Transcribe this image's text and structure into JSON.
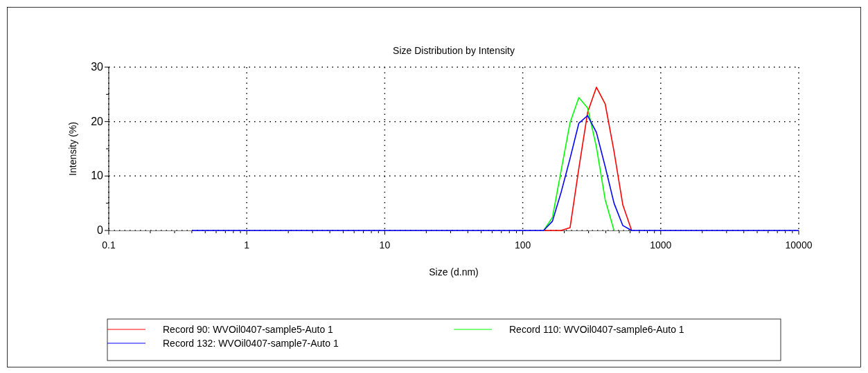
{
  "chart_data": {
    "type": "line",
    "title": "Size Distribution by Intensity",
    "xlabel": "Size (d.nm)",
    "ylabel": "Intensity (%)",
    "log": "x",
    "grid": true,
    "legend": "bottom",
    "marker": "none",
    "line_style": "solid",
    "x": [
      0.4,
      0.4632,
      0.5365,
      0.6213,
      0.7195,
      0.8332,
      0.9649,
      1.117,
      1.294,
      1.499,
      1.736,
      2.01,
      2.328,
      2.696,
      3.122,
      3.615,
      4.187,
      4.849,
      5.615,
      6.503,
      7.531,
      8.721,
      10.1,
      11.7,
      13.54,
      15.69,
      18.17,
      21.04,
      24.36,
      28.21,
      32.67,
      37.84,
      43.82,
      50.75,
      58.77,
      68.06,
      78.82,
      91.28,
      105.7,
      122.4,
      141.8,
      164.2,
      190.1,
      220.2,
      255,
      295.3,
      342,
      396.1,
      458.7,
      531.2,
      615.1,
      712.4,
      825,
      955.4,
      1106,
      1281,
      1484,
      1718,
      1990,
      2305,
      2669,
      3091,
      3580,
      4145,
      4801,
      5560,
      6439,
      7456,
      8635,
      10000
    ],
    "xlim": [
      0.1,
      10000
    ],
    "xticks": [
      0.1,
      {
        "value": 0.2,
        "label": null
      },
      {
        "value": 0.3,
        "label": null
      },
      {
        "value": 0.4,
        "label": null
      },
      {
        "value": 0.5,
        "label": null
      },
      {
        "value": 0.6,
        "label": null
      },
      {
        "value": 0.7,
        "label": null
      },
      {
        "value": 0.8,
        "label": null
      },
      {
        "value": 0.9,
        "label": null
      },
      1,
      {
        "value": 2,
        "label": null
      },
      {
        "value": 3,
        "label": null
      },
      {
        "value": 4,
        "label": null
      },
      {
        "value": 5,
        "label": null
      },
      {
        "value": 6,
        "label": null
      },
      {
        "value": 7,
        "label": null
      },
      {
        "value": 8,
        "label": null
      },
      {
        "value": 9,
        "label": null
      },
      10,
      {
        "value": 20,
        "label": null
      },
      {
        "value": 30,
        "label": null
      },
      {
        "value": 40,
        "label": null
      },
      {
        "value": 50,
        "label": null
      },
      {
        "value": 60,
        "label": null
      },
      {
        "value": 70,
        "label": null
      },
      {
        "value": 80,
        "label": null
      },
      {
        "value": 90,
        "label": null
      },
      100,
      {
        "value": 200,
        "label": null
      },
      {
        "value": 300,
        "label": null
      },
      {
        "value": 400,
        "label": null
      },
      {
        "value": 500,
        "label": null
      },
      {
        "value": 600,
        "label": null
      },
      {
        "value": 700,
        "label": null
      },
      {
        "value": 800,
        "label": null
      },
      {
        "value": 900,
        "label": null
      },
      1000,
      {
        "value": 2000,
        "label": null
      },
      {
        "value": 3000,
        "label": null
      },
      {
        "value": 4000,
        "label": null
      },
      {
        "value": 5000,
        "label": null
      },
      {
        "value": 6000,
        "label": null
      },
      {
        "value": 7000,
        "label": null
      },
      {
        "value": 8000,
        "label": null
      },
      {
        "value": 9000,
        "label": null
      },
      10000
    ],
    "ylim": [
      0,
      30
    ],
    "yticks": [
      0,
      {
        "value": 5,
        "label": null
      },
      10,
      {
        "value": 15,
        "label": null
      },
      20,
      {
        "value": 25,
        "label": null
      },
      30
    ],
    "series": [
      {
        "name": "Record 90: WVOil0407-sample5-Auto 1",
        "color": "#ff0000",
        "values": [
          null,
          null,
          null,
          null,
          null,
          null,
          null,
          null,
          null,
          null,
          null,
          null,
          null,
          null,
          null,
          null,
          null,
          null,
          null,
          null,
          null,
          null,
          null,
          null,
          null,
          null,
          null,
          null,
          null,
          null,
          null,
          null,
          null,
          null,
          null,
          null,
          null,
          null,
          null,
          null,
          0,
          0,
          0,
          0.5,
          11.4,
          21.7,
          26.3,
          23.2,
          14.5,
          4.7,
          0,
          null,
          null,
          null,
          null,
          null,
          null,
          null,
          null,
          null,
          null,
          null,
          null,
          null,
          null,
          null,
          null,
          null,
          null,
          null
        ]
      },
      {
        "name": "Record 110: WVOil0407-sample6-Auto 1",
        "color": "#00ff00",
        "values": [
          null,
          null,
          null,
          null,
          null,
          null,
          null,
          null,
          null,
          null,
          null,
          null,
          null,
          null,
          null,
          null,
          null,
          null,
          null,
          null,
          null,
          null,
          null,
          null,
          null,
          null,
          null,
          null,
          null,
          null,
          null,
          null,
          null,
          null,
          null,
          null,
          null,
          null,
          null,
          null,
          0,
          2.4,
          11.1,
          19.8,
          24.4,
          22.5,
          15.3,
          5.6,
          0,
          null,
          null,
          null,
          null,
          null,
          null,
          null,
          null,
          null,
          null,
          null,
          null,
          null,
          null,
          null,
          null,
          null,
          null,
          null,
          null,
          null
        ]
      },
      {
        "name": "Record 132: WVOil0407-sample7-Auto 1",
        "color": "#0000ff",
        "values": [
          0,
          0,
          0,
          0,
          0,
          0,
          0,
          0,
          0,
          0,
          0,
          0,
          0,
          0,
          0,
          0,
          0,
          0,
          0,
          0,
          0,
          0,
          0,
          0,
          0,
          0,
          0,
          0,
          0,
          0,
          0,
          0,
          0,
          0,
          0,
          0,
          0,
          0,
          0,
          0,
          0,
          1.7,
          7.1,
          13.2,
          19.7,
          21.1,
          18,
          11.7,
          5,
          0.9,
          0,
          0,
          0,
          0,
          0,
          0,
          0,
          0,
          0,
          0,
          0,
          0,
          0,
          0,
          0,
          0,
          0,
          0,
          0,
          0
        ]
      }
    ]
  }
}
